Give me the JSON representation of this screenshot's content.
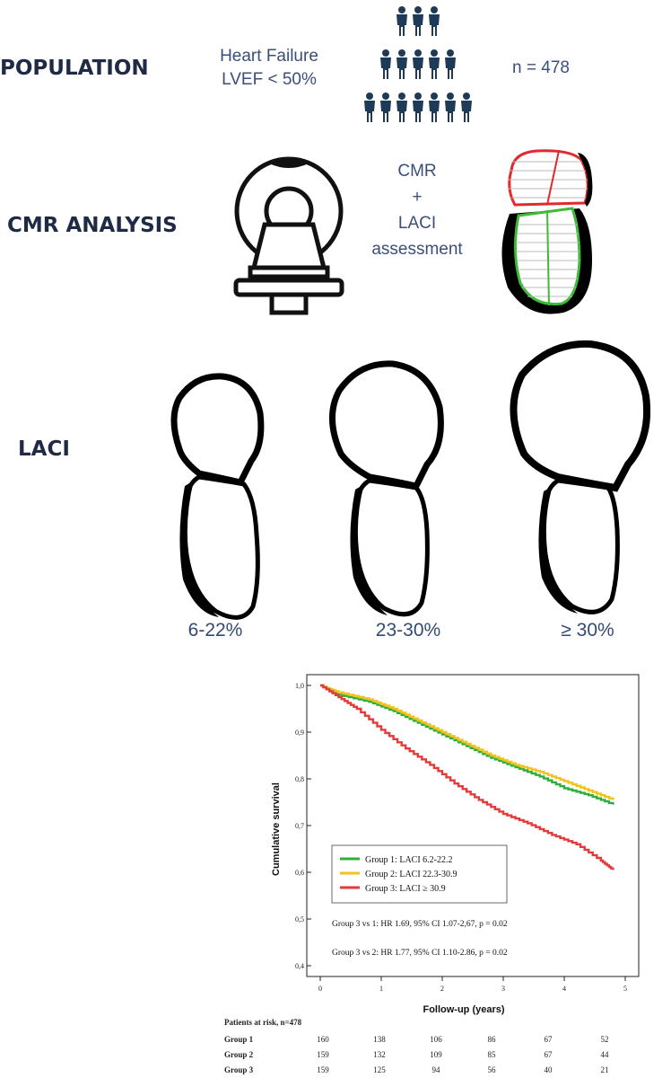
{
  "sections": {
    "population": "POPULATION",
    "cmr": "CMR ANALYSIS",
    "laci": "LACI"
  },
  "population": {
    "condition_line1": "Heart Failure",
    "condition_line2": "LVEF < 50%",
    "n": "n = 478"
  },
  "cmr": {
    "line1": "CMR",
    "line2": "+",
    "line3": "LACI",
    "line4": "assessment"
  },
  "laci_groups": [
    "6-22%",
    "23-30%",
    "≥ 30%"
  ],
  "colors": {
    "group1": "#2fae3a",
    "group2": "#f2c21b",
    "group3": "#e33a3a",
    "text_blue": "#3a4f7a",
    "heart_fill": "#000000"
  },
  "chart_data": {
    "type": "line",
    "title": "",
    "xlabel": "Follow-up (years)",
    "ylabel": "Cumulative survival",
    "xlim": [
      0,
      5
    ],
    "ylim": [
      0.4,
      1.0
    ],
    "x_ticks": [
      "0",
      "1",
      "2",
      "3",
      "4",
      "5"
    ],
    "y_ticks": [
      "0,4",
      "0,5",
      "0,6",
      "0,7",
      "0,8",
      "0,9",
      "1,0"
    ],
    "series": [
      {
        "name": "Group 1: LACI 6.2-22.2",
        "color": "#2fae3a",
        "x": [
          0,
          0.3,
          0.8,
          1.2,
          1.6,
          2.0,
          2.4,
          2.8,
          3.2,
          3.6,
          4.0,
          4.4,
          4.8
        ],
        "y": [
          1.0,
          0.98,
          0.965,
          0.945,
          0.92,
          0.895,
          0.87,
          0.845,
          0.825,
          0.805,
          0.78,
          0.765,
          0.745
        ]
      },
      {
        "name": "Group 2: LACI 22.3-30.9",
        "color": "#f2c21b",
        "x": [
          0,
          0.3,
          0.8,
          1.2,
          1.6,
          2.0,
          2.4,
          2.8,
          3.2,
          3.6,
          4.0,
          4.4,
          4.8
        ],
        "y": [
          1.0,
          0.985,
          0.97,
          0.95,
          0.925,
          0.9,
          0.875,
          0.85,
          0.83,
          0.815,
          0.795,
          0.775,
          0.755
        ]
      },
      {
        "name": "Group 3: LACI ≥ 30.9",
        "color": "#e33a3a",
        "x": [
          0,
          0.3,
          0.6,
          1.0,
          1.4,
          1.8,
          2.2,
          2.6,
          3.0,
          3.4,
          3.8,
          4.2,
          4.6,
          4.8
        ],
        "y": [
          1.0,
          0.975,
          0.95,
          0.905,
          0.865,
          0.83,
          0.79,
          0.755,
          0.725,
          0.705,
          0.68,
          0.66,
          0.625,
          0.605
        ]
      }
    ],
    "annotations": [
      "Group 3 vs 1: HR 1.69, 95% CI 1.07-2,67, p = 0.02",
      "Group 3 vs 2: HR 1.77, 95% CI 1.10-2.86, p = 0.02"
    ]
  },
  "risk_table": {
    "title": "Patients at risk, n=478",
    "rows": [
      {
        "label": "Group 1",
        "values": [
          "160",
          "138",
          "106",
          "86",
          "67",
          "52"
        ]
      },
      {
        "label": "Group 2",
        "values": [
          "159",
          "132",
          "109",
          "85",
          "67",
          "44"
        ]
      },
      {
        "label": "Group 3",
        "values": [
          "159",
          "125",
          "94",
          "56",
          "40",
          "21"
        ]
      }
    ]
  }
}
